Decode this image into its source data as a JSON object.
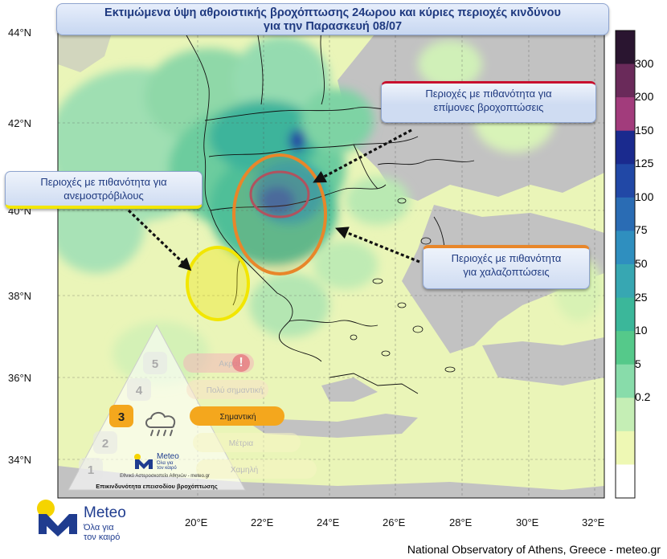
{
  "title": {
    "line1": "Εκτιμώμενα ύψη αθροιστικής βροχόπτωσης 24ωρου και κύριες περιοχές κινδύνου",
    "line2": "για την Παρασκευή 08/07"
  },
  "callouts": {
    "persistent_rain": {
      "line1": "Περιοχές με πιθανότητα για",
      "line2": "επίμονες βροχοπτώσεις",
      "color": "#c8102e"
    },
    "tornado": {
      "line1": "Περιοχές με πιθανότητα για",
      "line2": "ανεμοστρόβιλους",
      "color": "#f2e600"
    },
    "hail": {
      "line1": "Περιοχές με πιθανότητα",
      "line2": "για χαλαζοπτώσεις",
      "color": "#e8862a"
    }
  },
  "axes": {
    "lat_labels": [
      "44°N",
      "42°N",
      "40°N",
      "38°N",
      "36°N",
      "34°N"
    ],
    "lon_labels": [
      "20°E",
      "22°E",
      "24°E",
      "26°E",
      "28°E",
      "30°E",
      "32°E"
    ]
  },
  "colorbar": {
    "labels": [
      "300",
      "200",
      "150",
      "125",
      "100",
      "75",
      "50",
      "25",
      "10",
      "5",
      "0.2"
    ],
    "colors": [
      "#2a1530",
      "#6a2a5a",
      "#a23c7c",
      "#1a2a8e",
      "#2148a6",
      "#2a6cb4",
      "#2f8fbf",
      "#37a7b2",
      "#3bb79a",
      "#55c98a",
      "#88dcaa",
      "#c5eeb5",
      "#eef8b4",
      "#ffffff"
    ]
  },
  "risk_pyramid": {
    "levels": [
      {
        "num": "5",
        "label": "Ακραία"
      },
      {
        "num": "4",
        "label": "Πολύ σημαντική"
      },
      {
        "num": "3",
        "label": "Σημαντική"
      },
      {
        "num": "2",
        "label": "Μέτρια"
      },
      {
        "num": "1",
        "label": "Χαμηλή"
      }
    ],
    "active_level": 3,
    "logo_name": "Meteo",
    "logo_tag1": "Όλα για",
    "logo_tag2": "τον καιρό",
    "org": "Εθνικό Αστεροσκοπείο Αθηνών - meteo.gr",
    "caption": "Επικινδυνότητα επεισοδίου βροχόπτωσης"
  },
  "logo": {
    "name": "Meteo",
    "tag1": "Όλα για",
    "tag2": "τον καιρό"
  },
  "footer": "National Observatory of Athens, Greece - meteo.gr"
}
